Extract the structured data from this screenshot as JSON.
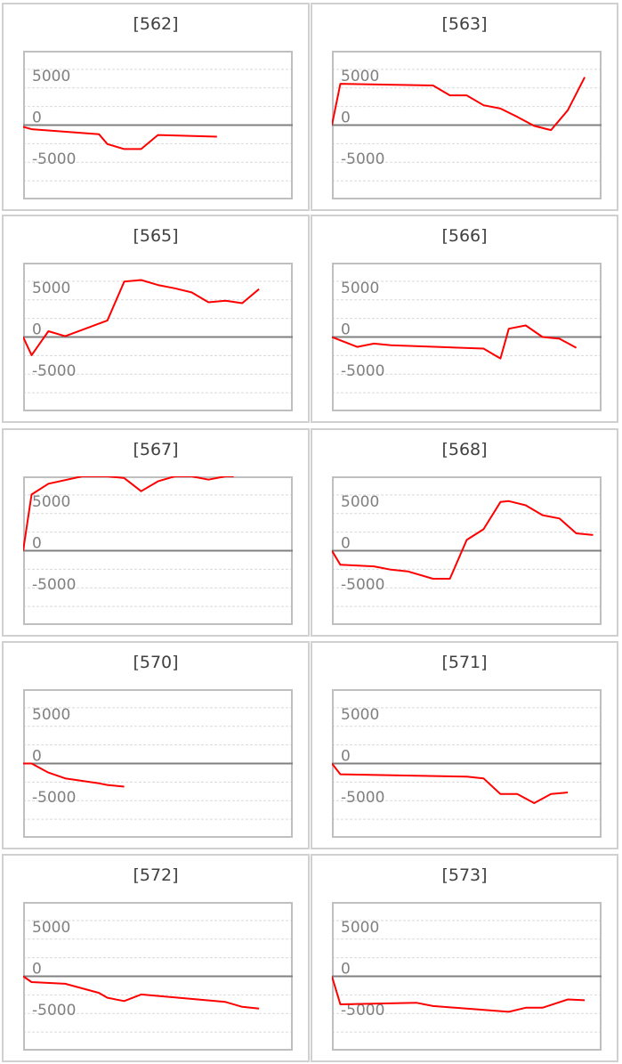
{
  "style": {
    "line_color": "#ff0000",
    "zero_line_color": "#808080",
    "grid_color": "#d9d9d9",
    "frame_color": "#bfbfbf",
    "panel_border_color": "#d0d0d0"
  },
  "chart_data": [
    {
      "type": "line",
      "title": "[562]",
      "y_ticks": [
        "5000",
        "0",
        "-5000"
      ],
      "ylim": [
        -9000,
        9000
      ],
      "xlim": [
        0,
        16
      ],
      "x": [
        0,
        0.5,
        4.5,
        5,
        6,
        7,
        8,
        11.5
      ],
      "y": [
        -200,
        -500,
        -1100,
        -2300,
        -2900,
        -2900,
        -1200,
        -1400
      ]
    },
    {
      "type": "line",
      "title": "[563]",
      "y_ticks": [
        "5000",
        "0",
        "-5000"
      ],
      "ylim": [
        -9000,
        9000
      ],
      "xlim": [
        0,
        16
      ],
      "x": [
        0,
        0.5,
        6,
        7,
        8,
        9,
        10,
        11,
        12,
        13,
        14,
        15
      ],
      "y": [
        0,
        5000,
        4800,
        3600,
        3600,
        2400,
        2000,
        1000,
        -100,
        -600,
        1800,
        5800
      ]
    },
    {
      "type": "line",
      "title": "[565]",
      "y_ticks": [
        "5000",
        "0",
        "-5000"
      ],
      "ylim": [
        -9000,
        9000
      ],
      "xlim": [
        0,
        16
      ],
      "x": [
        0,
        0.5,
        1.5,
        2.5,
        5,
        6,
        7,
        8,
        9,
        10,
        11,
        12,
        13,
        14
      ],
      "y": [
        0,
        -2200,
        700,
        100,
        2000,
        6700,
        6900,
        6300,
        5900,
        5400,
        4200,
        4400,
        4100,
        5800
      ]
    },
    {
      "type": "line",
      "title": "[566]",
      "y_ticks": [
        "5000",
        "0",
        "-5000"
      ],
      "ylim": [
        -9000,
        9000
      ],
      "xlim": [
        0,
        16
      ],
      "x": [
        0,
        1.5,
        2.5,
        3.5,
        9,
        10,
        10.5,
        11.5,
        12.5,
        13.5,
        14.5
      ],
      "y": [
        0,
        -1200,
        -800,
        -1000,
        -1400,
        -2600,
        1000,
        1400,
        0,
        -200,
        -1300
      ]
    },
    {
      "type": "line",
      "title": "[567]",
      "y_ticks": [
        "5000",
        "0",
        "-5000"
      ],
      "ylim": [
        -9000,
        9000
      ],
      "xlim": [
        0,
        16
      ],
      "x": [
        0,
        0.5,
        1.5,
        3.5,
        5,
        6,
        7,
        8,
        9,
        10,
        11,
        12,
        12.5
      ],
      "y": [
        0,
        6800,
        8100,
        9000,
        9000,
        8800,
        7200,
        8400,
        9000,
        9000,
        8600,
        9000,
        9000
      ]
    },
    {
      "type": "line",
      "title": "[568]",
      "y_ticks": [
        "5000",
        "0",
        "-5000"
      ],
      "ylim": [
        -9000,
        9000
      ],
      "xlim": [
        0,
        16
      ],
      "x": [
        0,
        0.5,
        2.5,
        3.5,
        4.5,
        6,
        7,
        8,
        9,
        10,
        10.5,
        11.5,
        12.5,
        13.5,
        14.5,
        15.5
      ],
      "y": [
        0,
        -1700,
        -1900,
        -2300,
        -2500,
        -3400,
        -3400,
        1300,
        2600,
        5900,
        6000,
        5500,
        4300,
        3900,
        2100,
        1900
      ]
    },
    {
      "type": "line",
      "title": "[570]",
      "y_ticks": [
        "5000",
        "0",
        "-5000"
      ],
      "ylim": [
        -9000,
        9000
      ],
      "xlim": [
        0,
        16
      ],
      "x": [
        0,
        0.5,
        1.5,
        2.5,
        4.5,
        5,
        6
      ],
      "y": [
        0,
        0,
        -1100,
        -1800,
        -2400,
        -2600,
        -2800
      ]
    },
    {
      "type": "line",
      "title": "[571]",
      "y_ticks": [
        "5000",
        "0",
        "-5000"
      ],
      "ylim": [
        -9000,
        9000
      ],
      "xlim": [
        0,
        16
      ],
      "x": [
        0,
        0.5,
        8,
        9,
        10,
        11,
        12,
        13,
        14
      ],
      "y": [
        0,
        -1300,
        -1600,
        -1800,
        -3700,
        -3700,
        -4800,
        -3700,
        -3500
      ]
    },
    {
      "type": "line",
      "title": "[572]",
      "y_ticks": [
        "5000",
        "0",
        "-5000"
      ],
      "ylim": [
        -9000,
        9000
      ],
      "xlim": [
        0,
        16
      ],
      "x": [
        0,
        0.5,
        2.5,
        4.5,
        5,
        6,
        7,
        12,
        13,
        14
      ],
      "y": [
        0,
        -700,
        -900,
        -2000,
        -2600,
        -3000,
        -2200,
        -3100,
        -3700,
        -3900
      ]
    },
    {
      "type": "line",
      "title": "[573]",
      "y_ticks": [
        "5000",
        "0",
        "-5000"
      ],
      "ylim": [
        -9000,
        9000
      ],
      "xlim": [
        0,
        16
      ],
      "x": [
        0,
        0.5,
        5,
        6,
        10.5,
        11.5,
        12.5,
        14,
        15
      ],
      "y": [
        0,
        -3400,
        -3200,
        -3600,
        -4300,
        -3800,
        -3800,
        -2800,
        -2900
      ]
    }
  ]
}
